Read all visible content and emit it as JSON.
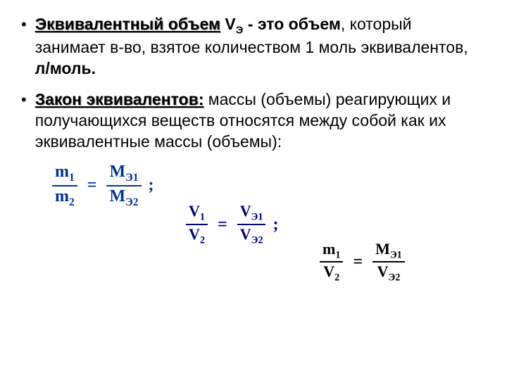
{
  "bullets": [
    {
      "term": "Эквивалентный объем",
      "term_suffix": " V",
      "term_sub": "Э",
      "rest_bold": " - это объем",
      "rest_plain": ", который занимает в-во, взятое количеством 1 моль эквивалентов, ",
      "rest_bold2": "л/моль."
    },
    {
      "term": "Закон эквивалентов:",
      "rest_plain": " массы (объемы) реагирующих и получающихся веществ относятся между собой как их эквивалентные массы (объемы):"
    }
  ],
  "formulas": {
    "f1": {
      "left_num": "m",
      "left_num_sub": "1",
      "left_den": "m",
      "left_den_sub": "2",
      "right_num": "М",
      "right_num_sub": "Э1",
      "right_den": "М",
      "right_den_sub": "Э2",
      "color_class": "f-blue"
    },
    "f2": {
      "left_num": "V",
      "left_num_sub": "1",
      "left_den": "V",
      "left_den_sub": "2",
      "right_num": "V",
      "right_num_sub": "Э1",
      "right_den": "V",
      "right_den_sub": "Э2",
      "color_class": "f-navy"
    },
    "f3": {
      "left_num": "m",
      "left_num_sub": "1",
      "left_den": "V",
      "left_den_sub": "2",
      "right_num": "М",
      "right_num_sub": "Э1",
      "right_den": "V",
      "right_den_sub": "Э2",
      "color_class": "f-black"
    }
  },
  "symbols": {
    "eq": "=",
    "semi": ";"
  }
}
